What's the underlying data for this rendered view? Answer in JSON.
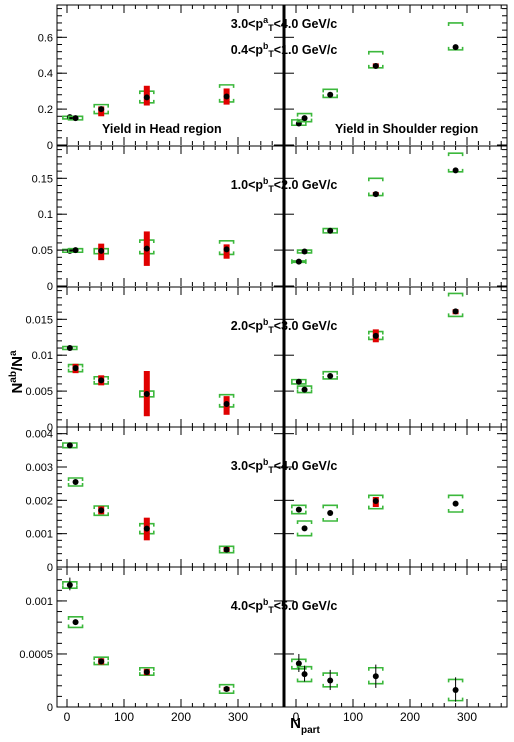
{
  "figure": {
    "y_axis_title": "N^{ab}/N^{a}",
    "x_axis_title": "N_{part}",
    "trigger_label": "3.0<p_T^a<4.0 GeV/c"
  },
  "regions": {
    "head": "Yield in Head region",
    "shoulder": "Yield in Shoulder region"
  },
  "colors": {
    "marker": "#000000",
    "stat_error": "#000000",
    "sys_box": "#3cb83c",
    "sys_bar": "#e00000"
  },
  "chart_data": [
    {
      "type": "scatter",
      "panel_label": "0.4<p_T^b<1.0 GeV/c",
      "ylim": [
        0,
        0.78
      ],
      "yticks": [
        0,
        0.2,
        0.4,
        0.6
      ],
      "ytick_labels": [
        "0",
        "0.2",
        "0.4",
        "0.6"
      ],
      "xlim": [
        -20,
        390
      ],
      "xticks": [
        0,
        100,
        200,
        300
      ],
      "grid": false,
      "head": {
        "x": [
          5,
          15,
          60,
          140,
          280
        ],
        "y": [
          0.155,
          0.15,
          0.2,
          0.265,
          0.27
        ],
        "sys_lo": [
          0.145,
          0.14,
          0.175,
          0.235,
          0.24
        ],
        "sys_hi": [
          0.16,
          0.16,
          0.225,
          0.3,
          0.335
        ],
        "red_lo": [
          null,
          null,
          0.16,
          0.22,
          0.225
        ],
        "red_hi": [
          null,
          null,
          0.215,
          0.33,
          0.315
        ]
      },
      "shoulder": {
        "x": [
          5,
          15,
          60,
          140,
          280
        ],
        "y": [
          0.12,
          0.15,
          0.28,
          0.44,
          0.545
        ],
        "sys_lo": [
          0.11,
          0.13,
          0.265,
          0.43,
          0.53
        ],
        "sys_hi": [
          0.14,
          0.175,
          0.31,
          0.52,
          0.68
        ],
        "red_lo": [
          null,
          null,
          null,
          0.43,
          null
        ],
        "red_hi": [
          null,
          null,
          null,
          0.455,
          null
        ]
      }
    },
    {
      "type": "scatter",
      "panel_label": "1.0<p_T^b<2.0 GeV/c",
      "ylim": [
        0,
        0.195
      ],
      "yticks": [
        0,
        0.05,
        0.1,
        0.15
      ],
      "ytick_labels": [
        "0",
        "0.05",
        "0.1",
        "0.15"
      ],
      "xlim": [
        -20,
        390
      ],
      "xticks": [
        0,
        100,
        200,
        300
      ],
      "grid": false,
      "head": {
        "x": [
          5,
          15,
          60,
          140,
          280
        ],
        "y": [
          0.049,
          0.05,
          0.049,
          0.052,
          0.051
        ],
        "sys_lo": [
          0.047,
          0.047,
          0.045,
          0.045,
          0.044
        ],
        "sys_hi": [
          0.051,
          0.052,
          0.052,
          0.064,
          0.063
        ],
        "red_lo": [
          null,
          null,
          0.036,
          0.028,
          0.038
        ],
        "red_hi": [
          null,
          null,
          0.059,
          0.076,
          0.058
        ]
      },
      "shoulder": {
        "x": [
          5,
          15,
          60,
          140,
          280
        ],
        "y": [
          0.034,
          0.048,
          0.077,
          0.128,
          0.161
        ],
        "sys_lo": [
          0.033,
          0.046,
          0.074,
          0.126,
          0.159
        ],
        "sys_hi": [
          0.035,
          0.05,
          0.08,
          0.15,
          0.185
        ],
        "red_lo": [
          null,
          null,
          null,
          0.126,
          null
        ],
        "red_hi": [
          null,
          null,
          null,
          0.131,
          null
        ]
      }
    },
    {
      "type": "scatter",
      "panel_label": "2.0<p_T^b<3.0 GeV/c",
      "ylim": [
        0,
        0.0195
      ],
      "yticks": [
        0,
        0.005,
        0.01,
        0.015
      ],
      "ytick_labels": [
        "0",
        "0.005",
        "0.01",
        "0.015"
      ],
      "xlim": [
        -20,
        390
      ],
      "xticks": [
        0,
        100,
        200,
        300
      ],
      "grid": false,
      "head": {
        "x": [
          5,
          15,
          60,
          140,
          280
        ],
        "y": [
          0.011,
          0.0082,
          0.0065,
          0.0046,
          0.0032
        ],
        "sys_lo": [
          0.0108,
          0.0077,
          0.006,
          0.0042,
          0.0028
        ],
        "sys_hi": [
          0.0112,
          0.0087,
          0.007,
          0.005,
          0.0045
        ],
        "red_lo": [
          null,
          0.0075,
          0.0058,
          0.0015,
          0.0017
        ],
        "red_hi": [
          null,
          0.0088,
          0.0072,
          0.0078,
          0.0043
        ]
      },
      "shoulder": {
        "x": [
          5,
          15,
          60,
          140,
          280
        ],
        "y": [
          0.0063,
          0.0052,
          0.0071,
          0.0127,
          0.0161
        ],
        "sys_lo": [
          0.006,
          0.0048,
          0.0067,
          0.0122,
          0.0154
        ],
        "sys_hi": [
          0.0066,
          0.0057,
          0.0077,
          0.0133,
          0.0186
        ],
        "red_lo": [
          null,
          null,
          null,
          0.0118,
          0.0157
        ],
        "red_hi": [
          null,
          null,
          null,
          0.0136,
          0.0164
        ]
      }
    },
    {
      "type": "scatter",
      "panel_label": "3.0<p_T^b<4.0 GeV/c",
      "ylim": [
        0,
        0.0042
      ],
      "yticks": [
        0,
        0.001,
        0.002,
        0.003,
        0.004
      ],
      "ytick_labels": [
        "0",
        "0.001",
        "0.002",
        "0.003",
        "0.004"
      ],
      "xlim": [
        -20,
        390
      ],
      "xticks": [
        0,
        100,
        200,
        300
      ],
      "grid": false,
      "head": {
        "x": [
          5,
          15,
          60,
          140,
          280
        ],
        "y": [
          0.00365,
          0.00255,
          0.0017,
          0.00115,
          0.00052
        ],
        "sys_lo": [
          0.00358,
          0.00243,
          0.00155,
          0.001,
          0.00043
        ],
        "sys_hi": [
          0.00372,
          0.00267,
          0.00183,
          0.0013,
          0.00062
        ],
        "red_lo": [
          null,
          null,
          0.00158,
          0.0008,
          0.00045
        ],
        "red_hi": [
          null,
          null,
          0.00182,
          0.00148,
          0.0006
        ]
      },
      "shoulder": {
        "x": [
          5,
          15,
          60,
          140,
          280
        ],
        "y": [
          0.00172,
          0.00116,
          0.00162,
          0.00198,
          0.0019
        ],
        "sys_lo": [
          0.0016,
          0.00094,
          0.00138,
          0.00175,
          0.00165
        ],
        "sys_hi": [
          0.00185,
          0.00138,
          0.00185,
          0.00215,
          0.00215
        ],
        "red_lo": [
          null,
          null,
          null,
          0.0018,
          null
        ],
        "red_hi": [
          null,
          null,
          null,
          0.0021,
          null
        ]
      }
    },
    {
      "type": "scatter",
      "panel_label": "4.0<p_T^b<5.0 GeV/c",
      "ylim": [
        0,
        0.00132
      ],
      "yticks": [
        0,
        0.0005,
        0.001
      ],
      "ytick_labels": [
        "0",
        "0.0005",
        "0.001"
      ],
      "xlim": [
        -20,
        390
      ],
      "xticks": [
        0,
        100,
        200,
        300
      ],
      "xtick_labels": [
        "0",
        "100",
        "200",
        "300"
      ],
      "grid": false,
      "head": {
        "x": [
          5,
          15,
          60,
          140,
          280
        ],
        "y": [
          0.00115,
          0.0008,
          0.00043,
          0.00033,
          0.00017
        ],
        "sys_lo": [
          0.00112,
          0.00075,
          0.0004,
          0.0003,
          0.00013
        ],
        "sys_hi": [
          0.00118,
          0.00085,
          0.00047,
          0.00037,
          0.00021
        ],
        "stat_lo": [
          0.0011,
          null,
          null,
          null,
          null
        ],
        "stat_hi": [
          0.00122,
          null,
          null,
          null,
          null
        ],
        "red_lo": [
          null,
          null,
          0.0004,
          0.0003,
          0.00015
        ],
        "red_hi": [
          null,
          null,
          0.00046,
          0.00036,
          0.00019
        ]
      },
      "shoulder": {
        "x": [
          5,
          15,
          60,
          140,
          280
        ],
        "y": [
          0.00041,
          0.00031,
          0.00025,
          0.00029,
          0.00016
        ],
        "sys_lo": [
          0.00036,
          0.00024,
          0.00019,
          0.00022,
          6e-05
        ],
        "sys_hi": [
          0.00045,
          0.00038,
          0.00032,
          0.00037,
          0.00026
        ],
        "stat_lo": [
          0.00033,
          0.00024,
          0.00016,
          0.00018,
          5e-05
        ],
        "stat_hi": [
          0.0005,
          0.00039,
          0.00035,
          0.0004,
          0.00028
        ],
        "red_lo": [
          null,
          null,
          null,
          null,
          null
        ],
        "red_hi": [
          null,
          null,
          null,
          null,
          null
        ]
      }
    }
  ]
}
